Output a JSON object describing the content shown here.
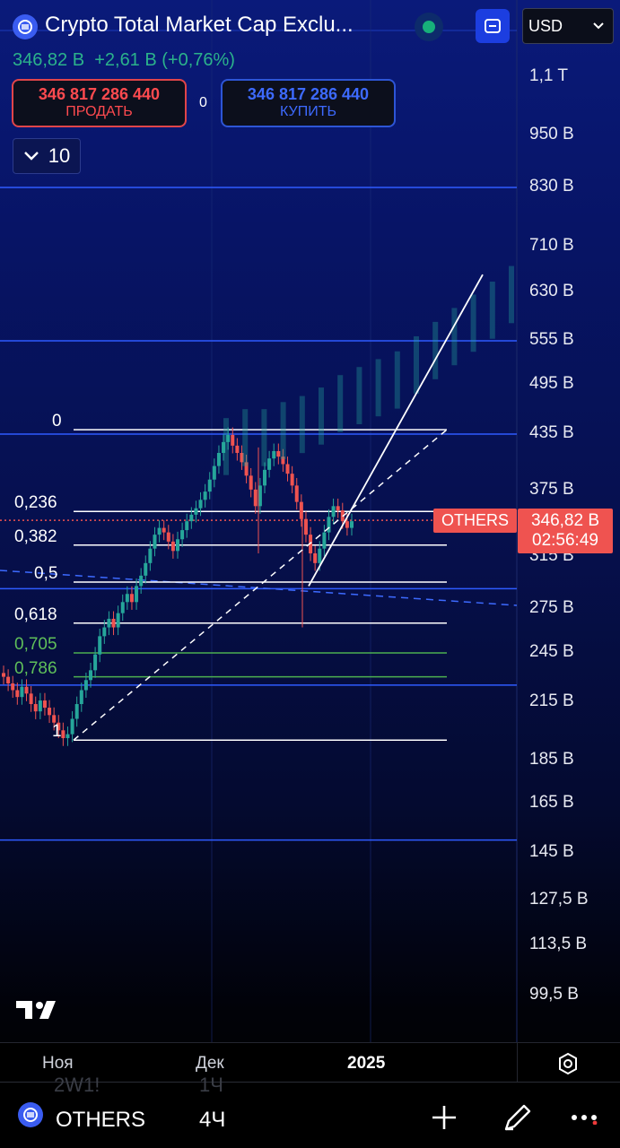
{
  "header": {
    "title": "Crypto Total Market Cap Exclu...",
    "last_price": "346,82 B",
    "change": "+2,61 B (+0,76%)",
    "sell": {
      "price": "346 817 286 440",
      "label": "ПРОДАТЬ"
    },
    "spread": "0",
    "buy": {
      "price": "346 817 286 440",
      "label": "КУПИТЬ"
    },
    "currency": "USD",
    "interval_count": "10"
  },
  "price_axis": {
    "labels": [
      "1,1 T",
      "950 B",
      "830 B",
      "710 B",
      "630 B",
      "555 B",
      "495 B",
      "435 B",
      "375 B",
      "315 B",
      "275 B",
      "245 B",
      "215 B",
      "185 B",
      "165 B",
      "145 B",
      "127,5 B",
      "113,5 B",
      "99,5 B"
    ],
    "current_price": "346,82 B",
    "countdown": "02:56:49",
    "symbol_tag": "OTHERS"
  },
  "time_axis": {
    "labels": [
      "Ноя",
      "Дек",
      "2025"
    ]
  },
  "toolbar": {
    "symbol": "OTHERS",
    "interval": "4Ч",
    "ghost_left": "2W1!",
    "ghost_right": "1Ч"
  },
  "colors": {
    "up": "#26a69a",
    "down": "#ef5350",
    "accent": "#2962ff",
    "fib_line": "#ffffff",
    "fib_green": "#4caf50",
    "level_line": "#2f5bff"
  },
  "chart_data": {
    "type": "candlestick",
    "y_scale": "log",
    "ylim": [
      95,
      1150
    ],
    "x_ticks": [
      "Ноя",
      "Дек",
      "2025"
    ],
    "horizontal_levels": [
      830,
      555,
      435,
      290,
      225,
      150
    ],
    "fibonacci": {
      "high": 440,
      "low": 195,
      "levels": [
        {
          "label": "0",
          "ratio": 0,
          "value": 440
        },
        {
          "label": "0,236",
          "ratio": 0.236,
          "value": 355
        },
        {
          "label": "0,382",
          "ratio": 0.382,
          "value": 325
        },
        {
          "label": "0,5",
          "ratio": 0.5,
          "value": 295
        },
        {
          "label": "0,618",
          "ratio": 0.618,
          "value": 265
        },
        {
          "label": "0,705",
          "ratio": 0.705,
          "value": 245
        },
        {
          "label": "0,786",
          "ratio": 0.786,
          "value": 230
        },
        {
          "label": "1",
          "ratio": 1,
          "value": 195
        }
      ]
    },
    "current_price": 346.82,
    "series": [
      {
        "name": "OTHERS",
        "values": [
          230,
          226,
          222,
          218,
          224,
          220,
          214,
          210,
          216,
          212,
          208,
          204,
          200,
          196,
          198,
          206,
          214,
          222,
          228,
          234,
          244,
          256,
          262,
          268,
          262,
          272,
          280,
          286,
          280,
          292,
          300,
          310,
          322,
          334,
          340,
          336,
          328,
          320,
          330,
          338,
          346,
          352,
          358,
          366,
          374,
          386,
          400,
          414,
          426,
          434,
          422,
          414,
          404,
          390,
          376,
          360,
          380,
          396,
          408,
          416,
          410,
          402,
          392,
          380,
          364,
          348,
          334,
          318,
          310,
          322,
          336,
          350,
          360,
          356,
          346,
          340,
          346
        ]
      }
    ],
    "projection": [
      420,
      430,
      430,
      438,
      445,
      455,
      470,
      480,
      490,
      500,
      520,
      540,
      560,
      580,
      600,
      625
    ]
  }
}
